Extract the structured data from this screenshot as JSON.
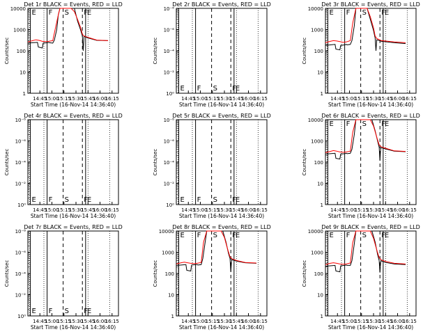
{
  "chart_data": {
    "type": "line",
    "layout": "3x3 grid",
    "time_range": [
      "14:30",
      "16:23"
    ],
    "x_ticks": [
      "14:45",
      "15:00",
      "15:15",
      "15:30",
      "15:45",
      "16:00",
      "16:15"
    ],
    "x_tick_minutes": [
      15,
      30,
      45,
      60,
      75,
      90,
      105
    ],
    "xlabel": "Start Time (16-Nov-14 14:36:40)",
    "ylabel": "Counts/sec",
    "legend": "BLACK = Events, RED = LLD",
    "colors": {
      "events": "#000000",
      "lld": "#ff0000",
      "frame": "#000000"
    },
    "log_ticks_active": [
      "1",
      "10",
      "100",
      "1000",
      "10000"
    ],
    "log_ticks_empty": [
      "10⁰",
      "10⁻²",
      "10⁻⁴",
      "10⁻⁶",
      "10⁻⁸"
    ],
    "markers": [
      {
        "label": "E",
        "t": 3,
        "style": "solid"
      },
      {
        "label": "F",
        "t": 24,
        "style": "solid"
      },
      {
        "label": "S",
        "t": 44,
        "style": "dashed"
      },
      {
        "label": "F",
        "t": 68,
        "style": "dashed"
      },
      {
        "label": "E",
        "t": 72,
        "style": "solid"
      }
    ],
    "dotted_lines_t": [
      2,
      20,
      75,
      102
    ],
    "panels": [
      {
        "title": "Det 1r BLACK = Events, RED = LLD",
        "has_data": true,
        "events": [
          [
            0,
            230
          ],
          [
            6,
            240
          ],
          [
            12,
            250
          ],
          [
            13,
            150
          ],
          [
            18,
            135
          ],
          [
            19,
            230
          ],
          [
            24,
            240
          ],
          [
            26,
            250
          ],
          [
            27,
            240
          ],
          [
            31,
            230
          ],
          [
            33,
            320
          ],
          [
            36,
            1000
          ],
          [
            38,
            5000
          ],
          [
            40,
            10000
          ],
          [
            58,
            10000
          ],
          [
            62,
            2500
          ],
          [
            66,
            900
          ],
          [
            68,
            500
          ],
          [
            69,
            100
          ],
          [
            70,
            480
          ],
          [
            75,
            400
          ],
          [
            86,
            310
          ],
          [
            100,
            300
          ]
        ],
        "lld": [
          [
            0,
            260
          ],
          [
            6,
            300
          ],
          [
            10,
            330
          ],
          [
            14,
            310
          ],
          [
            18,
            280
          ],
          [
            22,
            270
          ],
          [
            26,
            280
          ],
          [
            31,
            300
          ],
          [
            34,
            1000
          ],
          [
            38,
            5000
          ],
          [
            40,
            10000
          ],
          [
            54,
            10000
          ],
          [
            58,
            7000
          ],
          [
            62,
            3000
          ],
          [
            66,
            1200
          ],
          [
            68,
            600
          ],
          [
            70,
            500
          ],
          [
            75,
            430
          ],
          [
            86,
            320
          ],
          [
            100,
            300
          ]
        ]
      },
      {
        "title": "Det 2r BLACK = Events, RED = LLD",
        "has_data": false,
        "events": [],
        "lld": []
      },
      {
        "title": "Det 3r BLACK = Events, RED = LLD",
        "has_data": true,
        "events": [
          [
            0,
            180
          ],
          [
            6,
            190
          ],
          [
            12,
            200
          ],
          [
            13,
            120
          ],
          [
            18,
            110
          ],
          [
            19,
            180
          ],
          [
            24,
            190
          ],
          [
            26,
            200
          ],
          [
            27,
            190
          ],
          [
            31,
            200
          ],
          [
            33,
            300
          ],
          [
            36,
            1500
          ],
          [
            38,
            10000
          ],
          [
            52,
            10000
          ],
          [
            56,
            3000
          ],
          [
            60,
            900
          ],
          [
            62,
            400
          ],
          [
            63,
            100
          ],
          [
            64,
            330
          ],
          [
            70,
            280
          ],
          [
            86,
            240
          ],
          [
            100,
            220
          ]
        ],
        "lld": [
          [
            0,
            240
          ],
          [
            6,
            280
          ],
          [
            10,
            300
          ],
          [
            14,
            290
          ],
          [
            18,
            270
          ],
          [
            22,
            250
          ],
          [
            26,
            260
          ],
          [
            31,
            300
          ],
          [
            34,
            2000
          ],
          [
            38,
            10000
          ],
          [
            52,
            10000
          ],
          [
            56,
            4000
          ],
          [
            60,
            1200
          ],
          [
            62,
            500
          ],
          [
            64,
            380
          ],
          [
            70,
            300
          ],
          [
            86,
            260
          ],
          [
            100,
            240
          ]
        ]
      },
      {
        "title": "Det 4r BLACK = Events, RED = LLD",
        "has_data": false,
        "events": [],
        "lld": []
      },
      {
        "title": "Det 5r BLACK = Events, RED = LLD",
        "has_data": false,
        "events": [],
        "lld": []
      },
      {
        "title": "Det 6r BLACK = Events, RED = LLD",
        "has_data": true,
        "events": [
          [
            0,
            240
          ],
          [
            6,
            250
          ],
          [
            12,
            260
          ],
          [
            13,
            150
          ],
          [
            18,
            140
          ],
          [
            19,
            240
          ],
          [
            24,
            250
          ],
          [
            26,
            260
          ],
          [
            27,
            250
          ],
          [
            31,
            260
          ],
          [
            33,
            400
          ],
          [
            36,
            2000
          ],
          [
            38,
            10000
          ],
          [
            58,
            10000
          ],
          [
            62,
            3000
          ],
          [
            65,
            1000
          ],
          [
            67,
            500
          ],
          [
            68,
            120
          ],
          [
            69,
            480
          ],
          [
            75,
            420
          ],
          [
            86,
            330
          ],
          [
            100,
            310
          ]
        ],
        "lld": [
          [
            0,
            280
          ],
          [
            6,
            320
          ],
          [
            10,
            350
          ],
          [
            14,
            330
          ],
          [
            18,
            300
          ],
          [
            22,
            290
          ],
          [
            26,
            300
          ],
          [
            31,
            330
          ],
          [
            34,
            2500
          ],
          [
            38,
            10000
          ],
          [
            56,
            10000
          ],
          [
            60,
            5000
          ],
          [
            64,
            1500
          ],
          [
            67,
            650
          ],
          [
            70,
            520
          ],
          [
            76,
            440
          ],
          [
            86,
            340
          ],
          [
            100,
            320
          ]
        ]
      },
      {
        "title": "Det 7r BLACK = Events, RED = LLD",
        "has_data": false,
        "events": [],
        "lld": []
      },
      {
        "title": "Det 8r BLACK = Events, RED = LLD",
        "has_data": true,
        "events": [
          [
            0,
            240
          ],
          [
            6,
            250
          ],
          [
            12,
            260
          ],
          [
            13,
            140
          ],
          [
            18,
            130
          ],
          [
            19,
            250
          ],
          [
            24,
            260
          ],
          [
            26,
            260
          ],
          [
            27,
            250
          ],
          [
            31,
            260
          ],
          [
            33,
            500
          ],
          [
            36,
            3000
          ],
          [
            38,
            10000
          ],
          [
            58,
            10000
          ],
          [
            62,
            3000
          ],
          [
            65,
            900
          ],
          [
            67,
            500
          ],
          [
            68,
            120
          ],
          [
            69,
            450
          ],
          [
            75,
            380
          ],
          [
            86,
            320
          ],
          [
            100,
            300
          ]
        ],
        "lld": [
          [
            0,
            280
          ],
          [
            6,
            320
          ],
          [
            10,
            340
          ],
          [
            14,
            320
          ],
          [
            18,
            300
          ],
          [
            22,
            290
          ],
          [
            26,
            300
          ],
          [
            31,
            330
          ],
          [
            34,
            3000
          ],
          [
            38,
            10000
          ],
          [
            56,
            10000
          ],
          [
            60,
            5000
          ],
          [
            64,
            1400
          ],
          [
            67,
            600
          ],
          [
            70,
            480
          ],
          [
            76,
            400
          ],
          [
            86,
            330
          ],
          [
            100,
            310
          ]
        ]
      },
      {
        "title": "Det 9r BLACK = Events, RED = LLD",
        "has_data": true,
        "events": [
          [
            0,
            220
          ],
          [
            6,
            230
          ],
          [
            12,
            240
          ],
          [
            13,
            130
          ],
          [
            18,
            120
          ],
          [
            19,
            230
          ],
          [
            24,
            240
          ],
          [
            26,
            250
          ],
          [
            27,
            240
          ],
          [
            31,
            240
          ],
          [
            33,
            400
          ],
          [
            36,
            2500
          ],
          [
            38,
            10000
          ],
          [
            58,
            10000
          ],
          [
            62,
            3000
          ],
          [
            65,
            800
          ],
          [
            67,
            400
          ],
          [
            68,
            110
          ],
          [
            69,
            400
          ],
          [
            75,
            330
          ],
          [
            86,
            280
          ],
          [
            100,
            260
          ]
        ],
        "lld": [
          [
            0,
            260
          ],
          [
            6,
            300
          ],
          [
            10,
            320
          ],
          [
            14,
            300
          ],
          [
            18,
            280
          ],
          [
            22,
            270
          ],
          [
            26,
            280
          ],
          [
            31,
            310
          ],
          [
            34,
            2800
          ],
          [
            38,
            10000
          ],
          [
            56,
            10000
          ],
          [
            60,
            4500
          ],
          [
            64,
            1300
          ],
          [
            67,
            550
          ],
          [
            70,
            430
          ],
          [
            76,
            360
          ],
          [
            86,
            300
          ],
          [
            100,
            280
          ]
        ]
      }
    ]
  }
}
